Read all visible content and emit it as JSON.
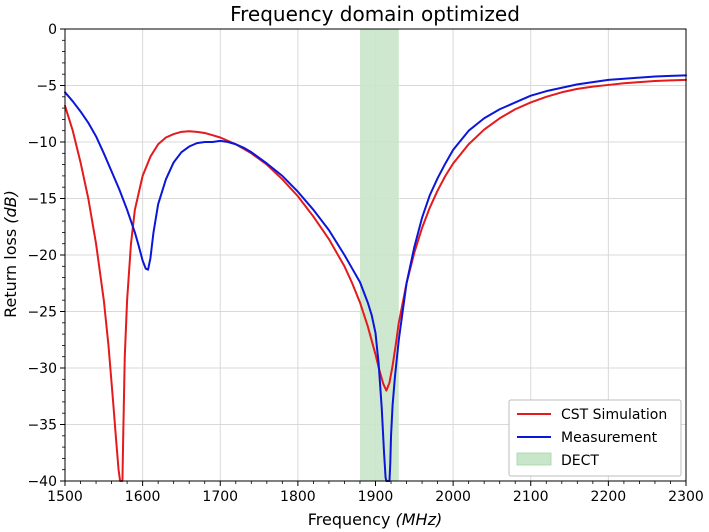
{
  "chart_data": {
    "type": "line",
    "title": "Frequency domain optimized",
    "xlabel_main": "Frequency ",
    "xlabel_unit": "MHz",
    "ylabel_main": "Return loss ",
    "ylabel_unit": "dB",
    "xlim": [
      1500,
      2300
    ],
    "ylim": [
      -40,
      0
    ],
    "xticks": [
      1500,
      1600,
      1700,
      1800,
      1900,
      2000,
      2100,
      2200,
      2300
    ],
    "yticks": [
      0,
      -5,
      -10,
      -15,
      -20,
      -25,
      -30,
      -35,
      -40
    ],
    "grid": true,
    "legend_position": "bottom-right",
    "band": {
      "name": "DECT",
      "x_range": [
        1880,
        1930
      ],
      "color": "#c8e6c9"
    },
    "series": [
      {
        "name": "CST Simulation",
        "color": "#e41a1c",
        "x": [
          1500,
          1510,
          1520,
          1530,
          1540,
          1550,
          1556,
          1562,
          1566,
          1569,
          1571,
          1572,
          1573,
          1574,
          1575,
          1577,
          1580,
          1585,
          1590,
          1600,
          1610,
          1620,
          1630,
          1640,
          1650,
          1660,
          1670,
          1680,
          1690,
          1700,
          1720,
          1740,
          1760,
          1780,
          1800,
          1820,
          1840,
          1860,
          1870,
          1880,
          1890,
          1900,
          1905,
          1910,
          1914,
          1918,
          1922,
          1926,
          1930,
          1940,
          1950,
          1960,
          1970,
          1980,
          1990,
          2000,
          2020,
          2040,
          2060,
          2080,
          2100,
          2120,
          2140,
          2160,
          2180,
          2200,
          2220,
          2240,
          2260,
          2280,
          2300
        ],
        "y": [
          -6.8,
          -9.0,
          -11.8,
          -15.0,
          -19.0,
          -24.0,
          -28.0,
          -33.0,
          -36.5,
          -39.0,
          -40.0,
          -40.0,
          -40.0,
          -40.0,
          -36.0,
          -29.0,
          -24.0,
          -19.0,
          -16.0,
          -13.0,
          -11.3,
          -10.2,
          -9.6,
          -9.3,
          -9.1,
          -9.05,
          -9.1,
          -9.2,
          -9.4,
          -9.6,
          -10.2,
          -11.0,
          -12.0,
          -13.3,
          -14.8,
          -16.6,
          -18.6,
          -21.0,
          -22.5,
          -24.2,
          -26.3,
          -28.8,
          -30.2,
          -31.4,
          -32.0,
          -31.3,
          -29.8,
          -28.0,
          -26.0,
          -22.5,
          -19.8,
          -17.6,
          -15.8,
          -14.3,
          -13.0,
          -11.9,
          -10.2,
          -8.9,
          -7.9,
          -7.1,
          -6.5,
          -6.0,
          -5.6,
          -5.3,
          -5.1,
          -4.95,
          -4.8,
          -4.7,
          -4.6,
          -4.55,
          -4.5
        ]
      },
      {
        "name": "Measurement",
        "color": "#0b16d9",
        "x": [
          1500,
          1510,
          1520,
          1530,
          1540,
          1550,
          1560,
          1570,
          1580,
          1590,
          1595,
          1600,
          1604,
          1607,
          1610,
          1614,
          1620,
          1630,
          1640,
          1650,
          1660,
          1670,
          1680,
          1690,
          1700,
          1710,
          1720,
          1730,
          1740,
          1760,
          1780,
          1800,
          1820,
          1840,
          1860,
          1870,
          1880,
          1890,
          1895,
          1900,
          1904,
          1908,
          1911,
          1913,
          1914,
          1915,
          1916,
          1917,
          1918,
          1919,
          1920,
          1922,
          1925,
          1930,
          1940,
          1950,
          1960,
          1970,
          1980,
          1990,
          2000,
          2020,
          2040,
          2060,
          2080,
          2100,
          2120,
          2140,
          2160,
          2180,
          2200,
          2220,
          2240,
          2260,
          2280,
          2300
        ],
        "y": [
          -5.6,
          -6.4,
          -7.3,
          -8.3,
          -9.5,
          -11.0,
          -12.6,
          -14.2,
          -16.0,
          -18.0,
          -19.2,
          -20.5,
          -21.2,
          -21.3,
          -20.3,
          -18.0,
          -15.5,
          -13.3,
          -11.8,
          -10.9,
          -10.4,
          -10.1,
          -10.0,
          -10.0,
          -9.9,
          -10.0,
          -10.2,
          -10.5,
          -10.9,
          -11.9,
          -13.0,
          -14.4,
          -16.0,
          -17.8,
          -20.0,
          -21.2,
          -22.4,
          -24.2,
          -25.3,
          -26.9,
          -29.6,
          -33.5,
          -37.5,
          -39.7,
          -40.0,
          -40.0,
          -40.0,
          -40.0,
          -40.0,
          -38.5,
          -36.0,
          -33.3,
          -30.8,
          -27.5,
          -22.5,
          -19.3,
          -16.7,
          -14.7,
          -13.2,
          -11.9,
          -10.7,
          -9.0,
          -7.9,
          -7.1,
          -6.5,
          -5.9,
          -5.5,
          -5.2,
          -4.9,
          -4.7,
          -4.5,
          -4.4,
          -4.3,
          -4.2,
          -4.15,
          -4.1
        ]
      }
    ],
    "legend_entries": [
      "CST Simulation",
      "Measurement",
      "DECT"
    ]
  }
}
